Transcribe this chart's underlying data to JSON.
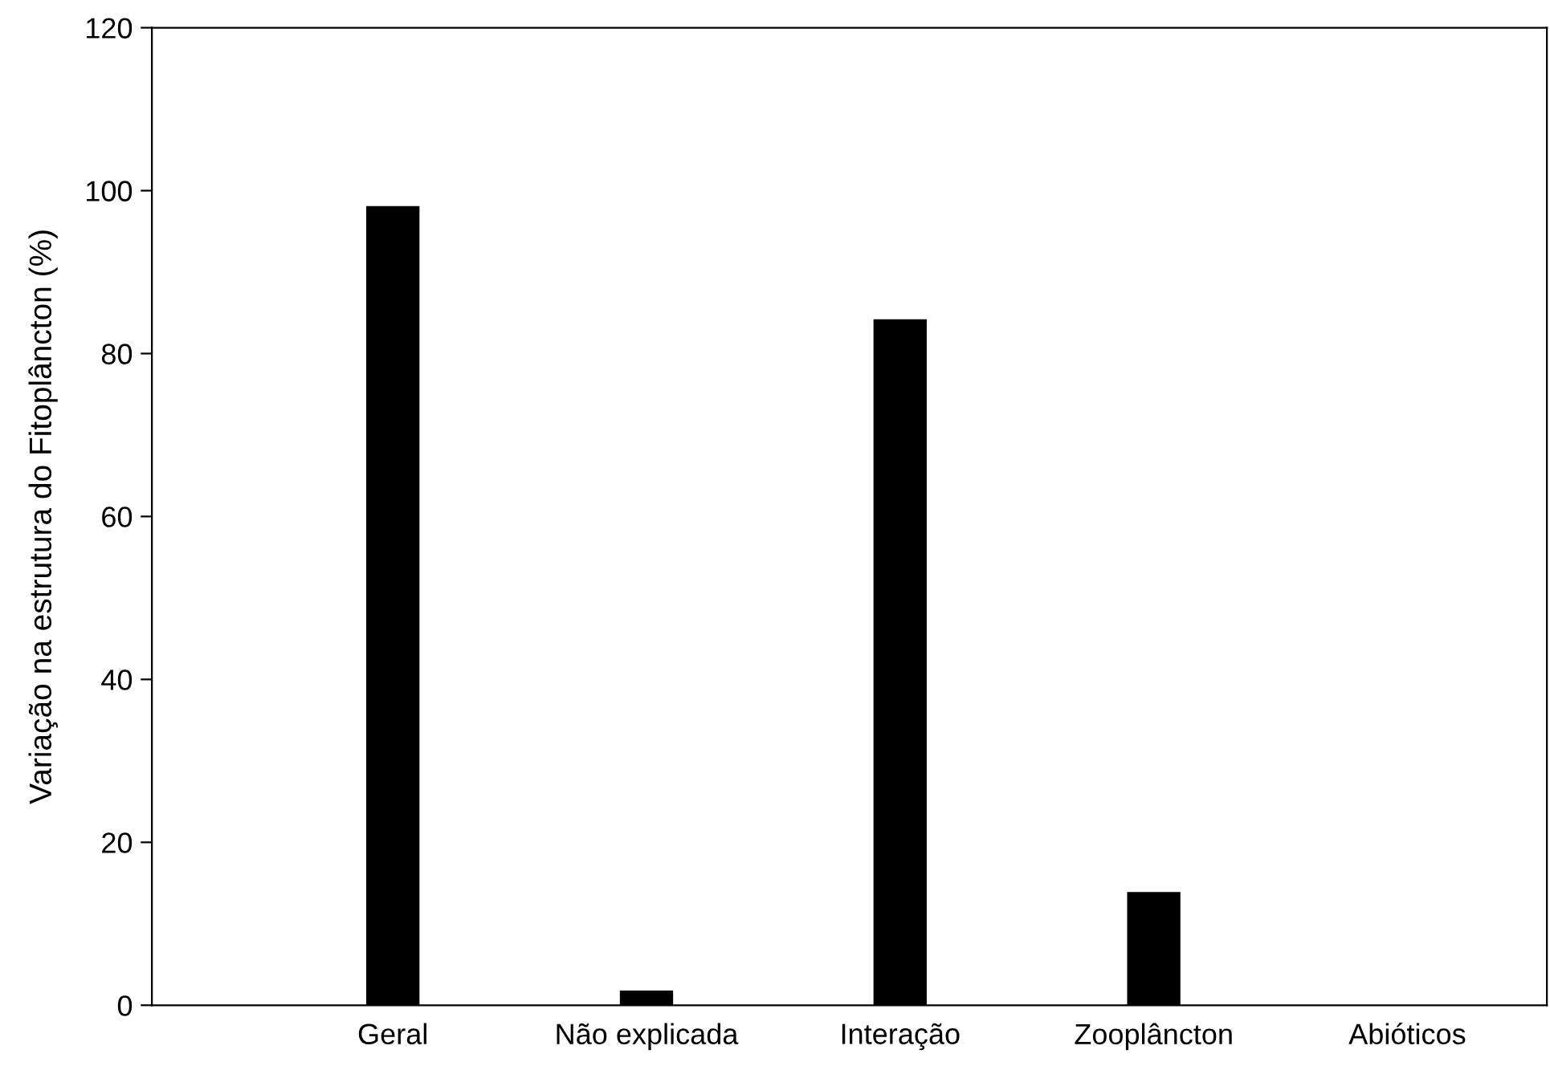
{
  "chart_data": {
    "type": "bar",
    "ylabel": "Variação na estrutura do Fitoplâncton (%)",
    "categories": [
      "Geral",
      "Não explicada",
      "Interação",
      "Zooplâncton",
      "Abióticos"
    ],
    "values": [
      98.1,
      1.8,
      84.2,
      13.9,
      0
    ],
    "color": "#000000",
    "ylim": [
      0,
      120
    ],
    "yticks": [
      0,
      20,
      40,
      60,
      80,
      100,
      120
    ],
    "grid": false,
    "legend": false
  }
}
